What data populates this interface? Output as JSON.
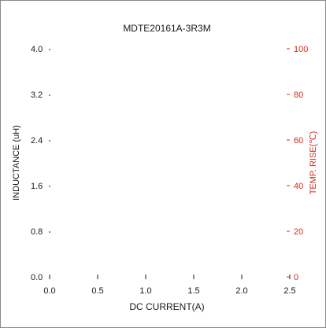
{
  "chart_data": {
    "type": "line",
    "title": "MDTE20161A-3R3M",
    "xlabel": "DC CURRENT(A)",
    "ylabel": "INDUCTANCE (uH)",
    "y2label": "TEMP. RISE(℃)",
    "xlim": [
      0.0,
      2.5
    ],
    "ylim": [
      0.0,
      4.0
    ],
    "y2lim": [
      0,
      100
    ],
    "x_ticks": [
      "0.0",
      "0.5",
      "1.0",
      "1.5",
      "2.0",
      "2.5"
    ],
    "y_ticks": [
      "0.0",
      "0.8",
      "1.6",
      "2.4",
      "3.2",
      "4.0"
    ],
    "y2_ticks": [
      "0",
      "20",
      "40",
      "60",
      "80",
      "100"
    ],
    "grid": false,
    "series": []
  },
  "colors": {
    "primary_axis": "#1a1a1a",
    "secondary_axis": "#d9291c",
    "frame": "#8a8a8a"
  }
}
